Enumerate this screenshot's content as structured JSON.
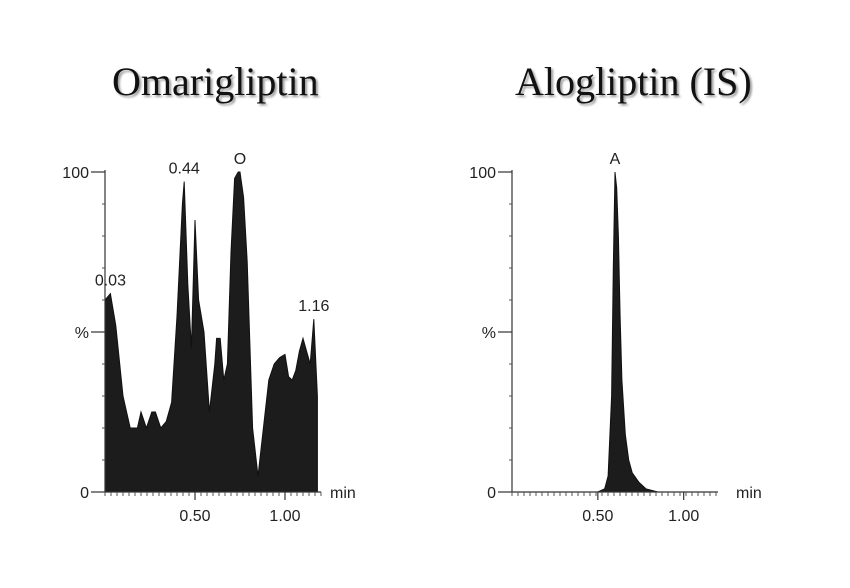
{
  "titles": {
    "left": "Omarigliptin",
    "right": "Alogliptin (IS)"
  },
  "chart_data": [
    {
      "type": "area",
      "title": "Omarigliptin",
      "ylabel": "%",
      "xlabel": "min",
      "ylim": [
        0,
        100
      ],
      "xlim": [
        0.0,
        1.2
      ],
      "y_tick_labels": [
        "100",
        "%",
        "0"
      ],
      "y_tick_values": [
        100,
        50,
        0
      ],
      "x_tick_labels": [
        "0.50",
        "1.00"
      ],
      "x_tick_values": [
        0.5,
        1.0
      ],
      "peak_labels": [
        {
          "text": "0.03",
          "x": 0.03,
          "y": 62
        },
        {
          "text": "0.44",
          "x": 0.44,
          "y": 97
        },
        {
          "text": "O",
          "x": 0.75,
          "y": 100
        },
        {
          "text": "1.16",
          "x": 1.16,
          "y": 54
        }
      ],
      "series": [
        {
          "x": [
            0.0,
            0.03,
            0.06,
            0.1,
            0.14,
            0.18,
            0.2,
            0.23,
            0.26,
            0.28,
            0.31,
            0.34,
            0.37,
            0.4,
            0.43,
            0.44,
            0.46,
            0.48,
            0.5,
            0.52,
            0.55,
            0.58,
            0.61,
            0.62,
            0.64,
            0.66,
            0.68,
            0.7,
            0.72,
            0.74,
            0.75,
            0.77,
            0.79,
            0.82,
            0.85,
            0.88,
            0.91,
            0.94,
            0.97,
            1.0,
            1.02,
            1.04,
            1.06,
            1.08,
            1.1,
            1.12,
            1.14,
            1.16,
            1.18
          ],
          "y": [
            60,
            62,
            52,
            30,
            20,
            20,
            25,
            20,
            25,
            25,
            20,
            22,
            28,
            55,
            90,
            97,
            65,
            45,
            85,
            60,
            50,
            25,
            40,
            48,
            48,
            35,
            40,
            75,
            98,
            100,
            100,
            92,
            72,
            20,
            5,
            20,
            35,
            40,
            42,
            43,
            36,
            35,
            38,
            44,
            48,
            44,
            40,
            54,
            30
          ]
        }
      ]
    },
    {
      "type": "area",
      "title": "Alogliptin (IS)",
      "ylabel": "%",
      "xlabel": "min",
      "ylim": [
        0,
        100
      ],
      "xlim": [
        0.0,
        1.2
      ],
      "y_tick_labels": [
        "100",
        "%",
        "0"
      ],
      "y_tick_values": [
        100,
        50,
        0
      ],
      "x_tick_labels": [
        "0.50",
        "1.00"
      ],
      "x_tick_values": [
        0.5,
        1.0
      ],
      "peak_labels": [
        {
          "text": "A",
          "x": 0.6,
          "y": 100
        }
      ],
      "series": [
        {
          "x": [
            0.0,
            0.3,
            0.5,
            0.54,
            0.56,
            0.58,
            0.59,
            0.6,
            0.61,
            0.62,
            0.63,
            0.64,
            0.66,
            0.68,
            0.7,
            0.74,
            0.78,
            0.85,
            1.0,
            1.2
          ],
          "y": [
            0,
            0,
            0,
            1,
            5,
            30,
            70,
            100,
            95,
            80,
            55,
            35,
            18,
            10,
            6,
            3,
            1,
            0,
            0,
            0
          ]
        }
      ]
    }
  ]
}
